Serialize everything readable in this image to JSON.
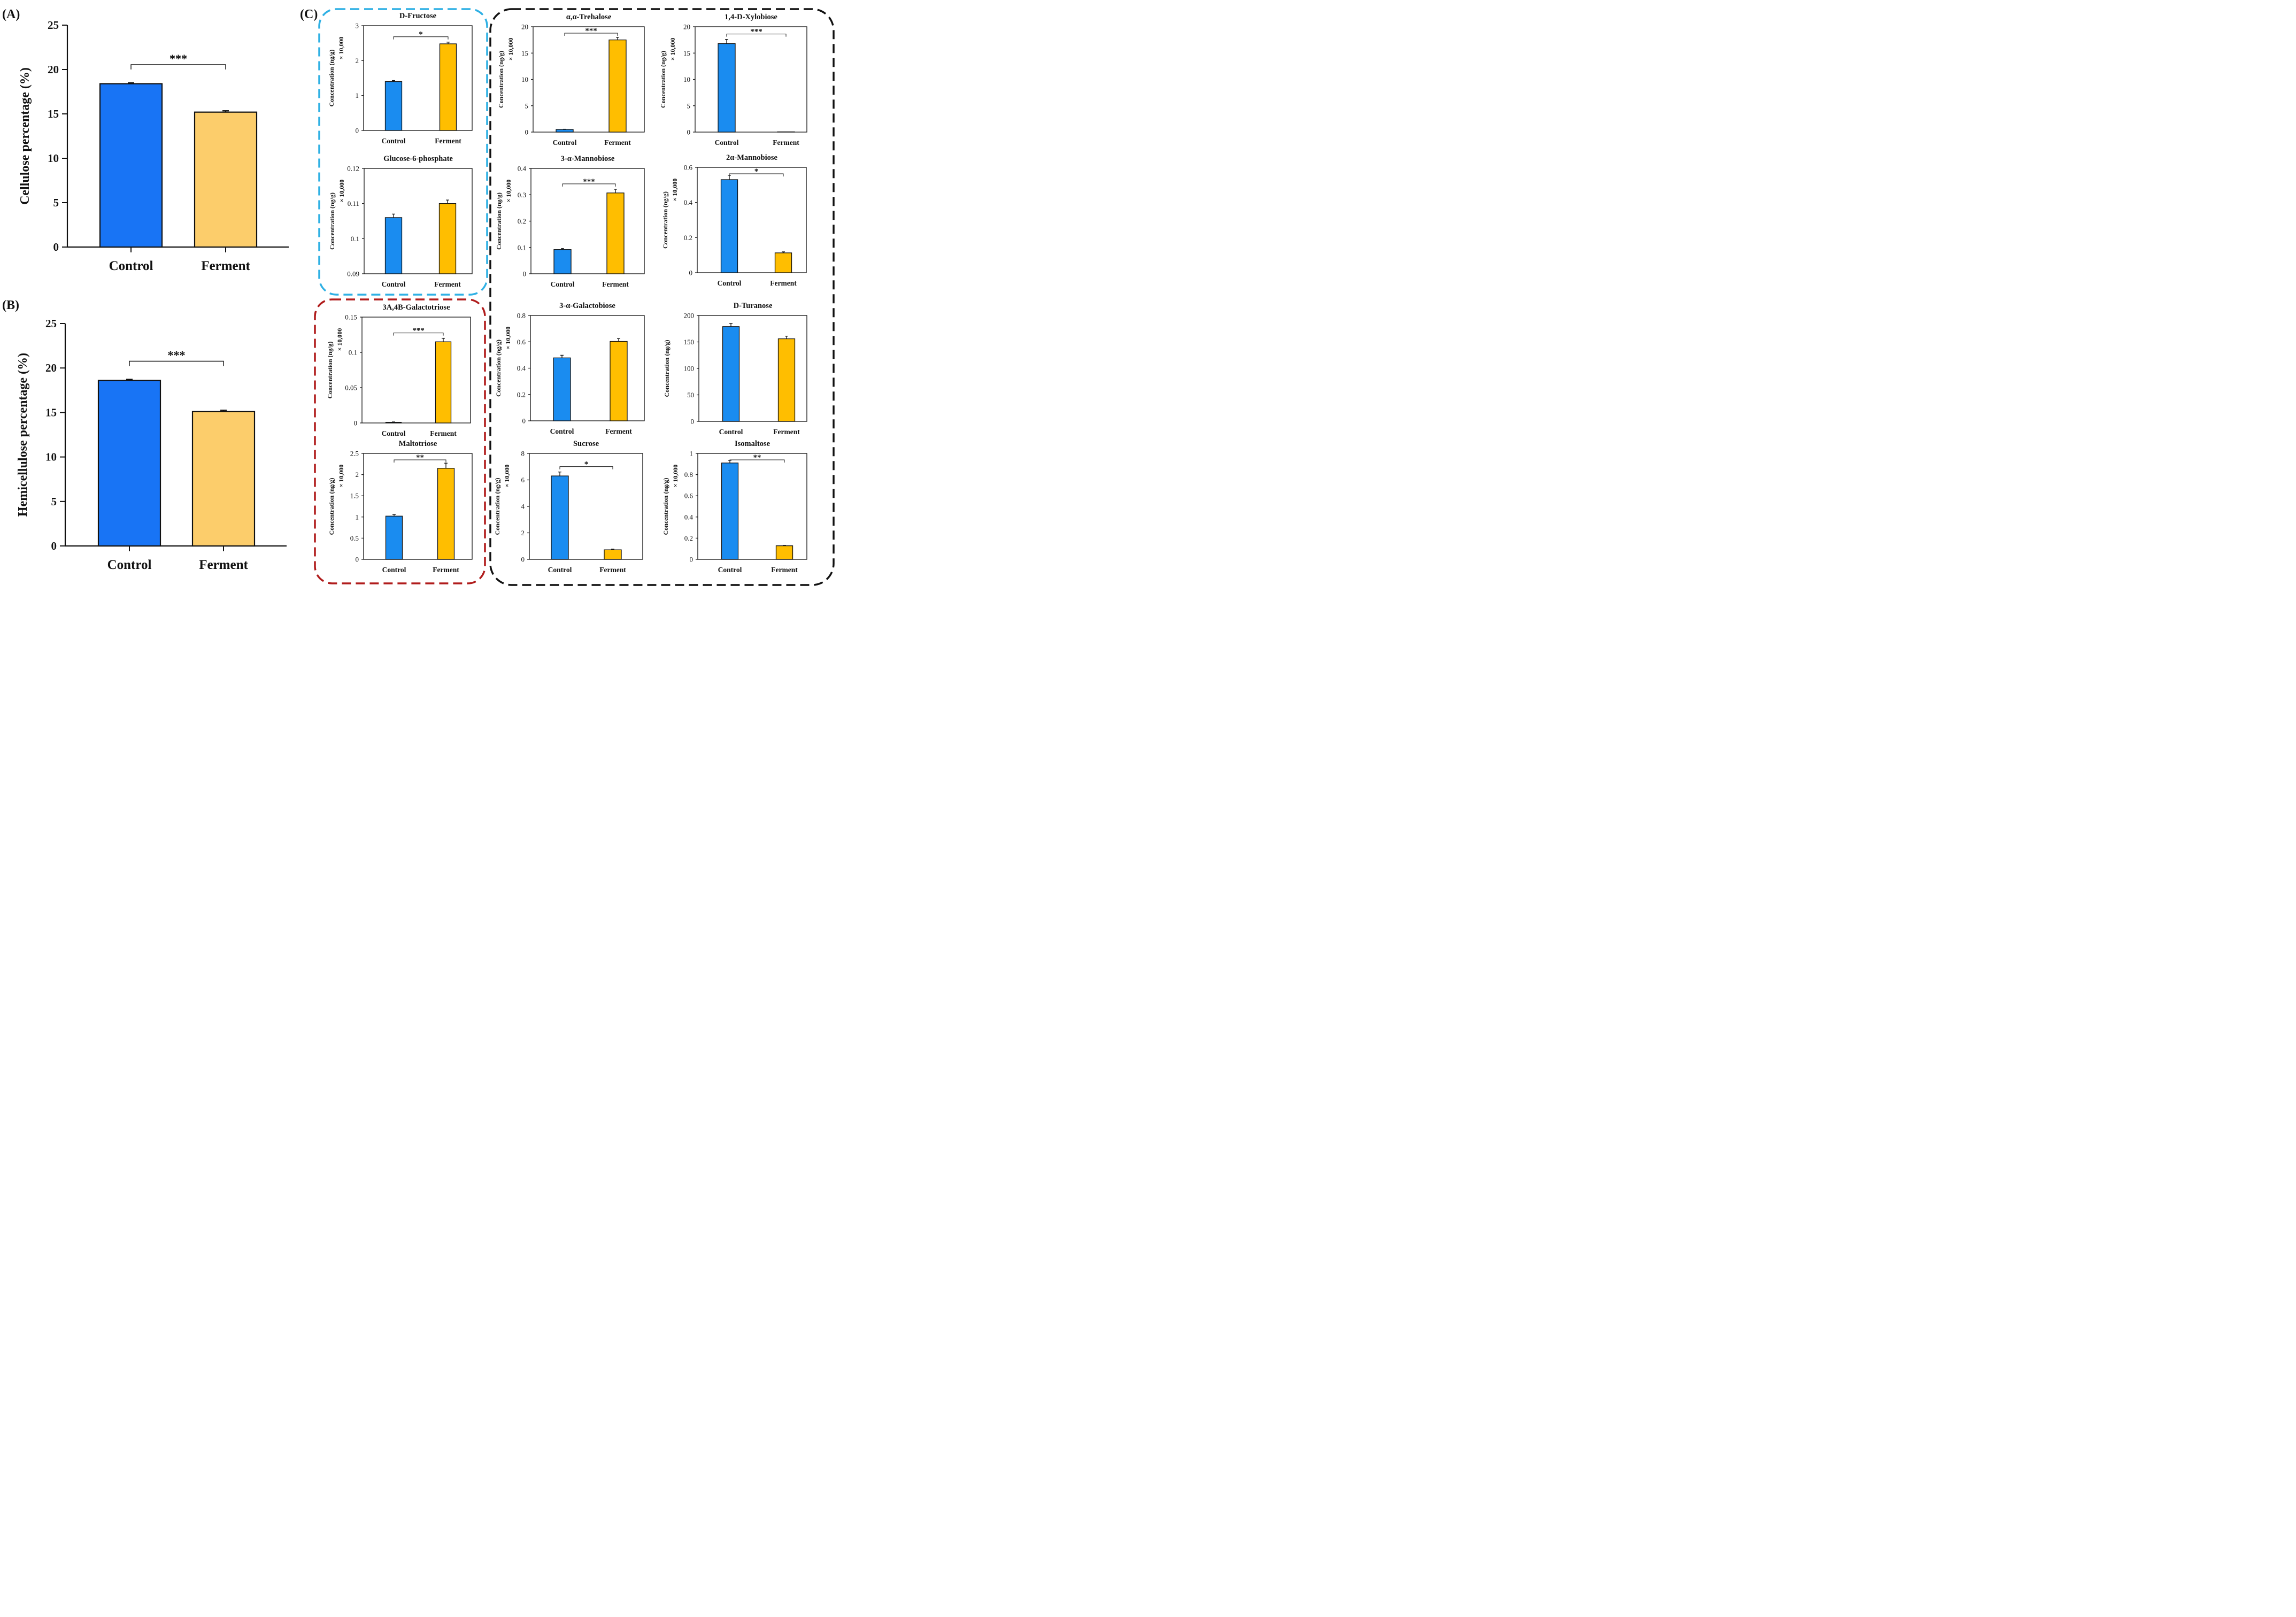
{
  "colors": {
    "control_big": "#1874f5",
    "ferment_big": "#fccd6b",
    "control_small": "#1a8cf0",
    "ferment_small": "#ffbe00",
    "box_blue": "#2fb0e4",
    "box_red": "#b01c1c",
    "box_black": "#111111"
  },
  "chart_data": [
    {
      "id": "A",
      "label": "(A)",
      "type": "bar",
      "categories": [
        "Control",
        "Ferment"
      ],
      "values": [
        18.4,
        15.2
      ],
      "errors": [
        0.1,
        0.15
      ],
      "ylabel": "Cellulose percentage (%)",
      "ylim": [
        0,
        25
      ],
      "yticks": [
        "0",
        "5",
        "10",
        "15",
        "20",
        "25"
      ],
      "significance": "***"
    },
    {
      "id": "B",
      "label": "(B)",
      "type": "bar",
      "categories": [
        "Control",
        "Ferment"
      ],
      "values": [
        18.6,
        15.1
      ],
      "errors": [
        0.12,
        0.15
      ],
      "ylabel": "Hemicellulose percentage (%)",
      "ylim": [
        0,
        25
      ],
      "yticks": [
        "0",
        "5",
        "10",
        "15",
        "20",
        "25"
      ],
      "significance": "***"
    },
    {
      "id": "C1",
      "label": "(C)",
      "type": "bar",
      "title": "D-Fructose",
      "categories": [
        "Control",
        "Ferment"
      ],
      "values": [
        1.4,
        2.48
      ],
      "errors": [
        0.03,
        0.05
      ],
      "ylabel": "Concentration (ng/g)",
      "scale": "× 10,000",
      "ylim": [
        0,
        3
      ],
      "yticks": [
        "0",
        "1",
        "2",
        "3"
      ],
      "significance": "*"
    },
    {
      "id": "C2",
      "type": "bar",
      "title": "α,α-Trehalose",
      "categories": [
        "Control",
        "Ferment"
      ],
      "values": [
        0.5,
        17.5
      ],
      "errors": [
        0.05,
        0.5
      ],
      "ylabel": "Concentration (ng/g)",
      "scale": "× 10,000",
      "ylim": [
        0,
        20
      ],
      "yticks": [
        "0",
        "5",
        "10",
        "15",
        "20"
      ],
      "significance": "***"
    },
    {
      "id": "C3",
      "type": "bar",
      "title": "1,4-D-Xylobiose",
      "categories": [
        "Control",
        "Ferment"
      ],
      "values": [
        16.8,
        0.02
      ],
      "errors": [
        0.8,
        0
      ],
      "ylabel": "Concentration (ng/g)",
      "scale": "× 10,000",
      "ylim": [
        0,
        20
      ],
      "yticks": [
        "0",
        "5",
        "10",
        "15",
        "20"
      ],
      "significance": "***"
    },
    {
      "id": "C4",
      "type": "bar",
      "title": "Glucose-6-phosphate",
      "categories": [
        "Control",
        "Ferment"
      ],
      "values": [
        0.106,
        0.11
      ],
      "errors": [
        0.001,
        0.001
      ],
      "ylabel": "Concentration (ng/g)",
      "scale": "× 10,000",
      "ylim": [
        0.09,
        0.12
      ],
      "yticks": [
        "0.09",
        "0.1",
        "0.11",
        "0.12"
      ],
      "significance": ""
    },
    {
      "id": "C5",
      "type": "bar",
      "title": "3-α-Mannobiose",
      "categories": [
        "Control",
        "Ferment"
      ],
      "values": [
        0.092,
        0.307
      ],
      "errors": [
        0.004,
        0.014
      ],
      "ylabel": "Concentration (ng/g)",
      "scale": "× 10,000",
      "ylim": [
        0,
        0.4
      ],
      "yticks": [
        "0",
        "0.1",
        "0.2",
        "0.3",
        "0.4"
      ],
      "significance": "***"
    },
    {
      "id": "C6",
      "type": "bar",
      "title": "2α-Mannobiose",
      "categories": [
        "Control",
        "Ferment"
      ],
      "values": [
        0.53,
        0.113
      ],
      "errors": [
        0.025,
        0.006
      ],
      "ylabel": "Concentration (ng/g)",
      "scale": "× 10,000",
      "ylim": [
        0,
        0.6
      ],
      "yticks": [
        "0",
        "0.2",
        "0.4",
        "0.6"
      ],
      "significance": "*"
    },
    {
      "id": "C7",
      "type": "bar",
      "title": "3A,4B-Galactotriose",
      "categories": [
        "Control",
        "Ferment"
      ],
      "values": [
        0.001,
        0.115
      ],
      "errors": [
        0.0005,
        0.005
      ],
      "ylabel": "Concentration (ng/g)",
      "scale": "× 10,000",
      "ylim": [
        0,
        0.15
      ],
      "yticks": [
        "0",
        "0.05",
        "0.1",
        "0.15"
      ],
      "significance": "***"
    },
    {
      "id": "C8",
      "type": "bar",
      "title": "3-α-Galactobiose",
      "categories": [
        "Control",
        "Ferment"
      ],
      "values": [
        0.478,
        0.603
      ],
      "errors": [
        0.02,
        0.022
      ],
      "ylabel": "Concentration (ng/g)",
      "scale": "× 10,000",
      "ylim": [
        0,
        0.8
      ],
      "yticks": [
        "0",
        "0.2",
        "0.4",
        "0.6",
        "0.8"
      ],
      "significance": ""
    },
    {
      "id": "C9",
      "type": "bar",
      "title": "D-Turanose",
      "categories": [
        "Control",
        "Ferment"
      ],
      "values": [
        179,
        156
      ],
      "errors": [
        6,
        5
      ],
      "ylabel": "Concentration (ng/g)",
      "scale": "",
      "ylim": [
        0,
        200
      ],
      "yticks": [
        "0",
        "50",
        "100",
        "150",
        "200"
      ],
      "significance": ""
    },
    {
      "id": "C10",
      "type": "bar",
      "title": "Maltotriose",
      "categories": [
        "Control",
        "Ferment"
      ],
      "values": [
        1.02,
        2.15
      ],
      "errors": [
        0.04,
        0.12
      ],
      "ylabel": "Concentration (ng/g)",
      "scale": "× 10,000",
      "ylim": [
        0,
        2.5
      ],
      "yticks": [
        "0",
        "0.5",
        "1",
        "1.5",
        "2",
        "2.5"
      ],
      "significance": "**"
    },
    {
      "id": "C11",
      "type": "bar",
      "title": "Sucrose",
      "categories": [
        "Control",
        "Ferment"
      ],
      "values": [
        6.3,
        0.72
      ],
      "errors": [
        0.3,
        0.05
      ],
      "ylabel": "Concentration (ng/g)",
      "scale": "× 10,000",
      "ylim": [
        0,
        8
      ],
      "yticks": [
        "0",
        "2",
        "4",
        "6",
        "8"
      ],
      "significance": "*"
    },
    {
      "id": "C12",
      "type": "bar",
      "title": "Isomaltose",
      "categories": [
        "Control",
        "Ferment"
      ],
      "values": [
        0.91,
        0.128
      ],
      "errors": [
        0.025,
        0.004
      ],
      "ylabel": "Concentration (ng/g)",
      "scale": "× 10,000",
      "ylim": [
        0,
        1
      ],
      "yticks": [
        "0",
        "0.2",
        "0.4",
        "0.6",
        "0.8",
        "1"
      ],
      "significance": "**"
    }
  ]
}
